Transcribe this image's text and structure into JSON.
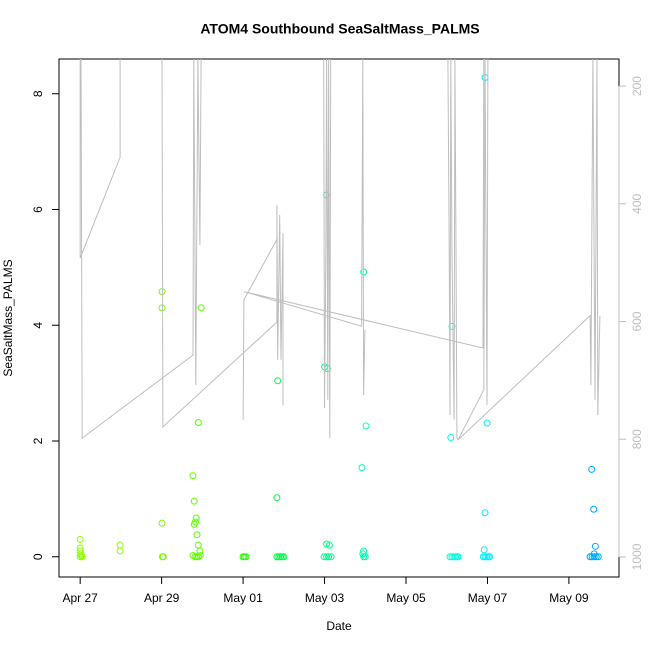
{
  "chart_data": {
    "type": "scatter",
    "title": "ATOM4 Southbound SeaSaltMass_PALMS",
    "x_label": "Date",
    "y_label": "SeaSaltMass_PALMS",
    "xlim": [
      -0.52,
      13.23
    ],
    "xticks": [
      {
        "value": 0,
        "label": "Apr 27"
      },
      {
        "value": 2,
        "label": "Apr 29"
      },
      {
        "value": 4,
        "label": "May 01"
      },
      {
        "value": 6,
        "label": "May 03"
      },
      {
        "value": 8,
        "label": "May 05"
      },
      {
        "value": 10,
        "label": "May 07"
      },
      {
        "value": 12,
        "label": "May 09"
      }
    ],
    "ylim": [
      -0.35,
      8.6
    ],
    "yticks": [
      0,
      2,
      4,
      6,
      8
    ],
    "y2lim": [
      1034,
      154
    ],
    "y2ticks": [
      200,
      400,
      600,
      800,
      1000
    ],
    "series": [
      {
        "color": "#8cff00",
        "x": [
          0,
          0,
          0,
          0.02,
          0.05,
          0,
          0.03,
          0.98,
          0.98
        ],
        "values": [
          0.3,
          0.15,
          0.1,
          0.05,
          0,
          0,
          0.02,
          0.2,
          0.1
        ]
      },
      {
        "color": "#6eff00",
        "x": [
          2.01,
          2.01,
          2.01,
          2.02,
          2.04
        ],
        "values": [
          4.58,
          4.3,
          0.58,
          0,
          0
        ]
      },
      {
        "color": "#5cff00",
        "x": [
          2.77,
          2.8,
          2.85,
          2.83,
          2.8,
          2.9,
          2.97,
          2.87,
          2.9,
          2.94,
          2.77,
          2.82,
          2.86,
          2.9,
          2.95
        ],
        "values": [
          1.4,
          0.96,
          0.67,
          0.6,
          0.56,
          2.32,
          4.3,
          0.38,
          0.2,
          0.1,
          0.02,
          0,
          0,
          0,
          0.02
        ]
      },
      {
        "color": "#26ff00",
        "x": [
          4.0,
          4.03,
          4.07
        ],
        "values": [
          0,
          0,
          0
        ]
      },
      {
        "color": "#00ff44",
        "x": [
          4.85,
          4.83,
          4.83,
          4.88,
          4.92,
          4.96,
          5.0
        ],
        "values": [
          3.04,
          1.02,
          0,
          0,
          0,
          0,
          0
        ]
      },
      {
        "color": "#00ff88",
        "x": [
          6.05,
          6.0,
          6.07,
          6.05,
          6.12,
          5.99,
          6.05,
          6.1,
          6.16
        ],
        "values": [
          6.25,
          3.28,
          3.25,
          0.22,
          0.2,
          0,
          0,
          0,
          0
        ]
      },
      {
        "color": "#00ffaa",
        "x": [
          6.96,
          7.02,
          6.92,
          6.96,
          6.94,
          6.96,
          7.0
        ],
        "values": [
          4.92,
          2.26,
          1.54,
          0.1,
          0.05,
          0,
          0
        ]
      },
      {
        "color": "#00ffdd",
        "x": [
          9.13,
          9.1,
          9.08,
          9.13,
          9.18,
          9.22,
          9.26,
          9.28
        ],
        "values": [
          3.98,
          2.06,
          0,
          0,
          0,
          0,
          0,
          0
        ]
      },
      {
        "color": "#00f0ff",
        "x": [
          9.94,
          9.99,
          9.94,
          9.92,
          9.9,
          9.94,
          9.98,
          10.02,
          10.05
        ],
        "values": [
          8.28,
          2.31,
          0.76,
          0.12,
          0,
          0,
          0,
          0,
          0
        ]
      },
      {
        "color": "#00a8ff",
        "x": [
          12.56,
          12.61,
          12.65,
          12.62,
          12.52,
          12.57,
          12.62,
          12.67,
          12.72
        ],
        "values": [
          1.51,
          0.82,
          0.18,
          0.05,
          0,
          0,
          0,
          0,
          0
        ]
      },
      {
        "type": "line",
        "axis": "y2",
        "color": "#bebebe",
        "x": [
          0,
          0,
          0.98,
          0.98,
          null,
          0.02,
          0.05,
          2.77,
          2.79,
          2.84,
          2.89,
          2.94,
          2.97,
          null,
          2.01,
          2.03,
          4.83,
          4.83,
          4.85,
          4.9,
          4.93,
          4.98,
          4.98,
          null,
          4.0,
          4.02,
          4.85,
          null,
          4.02,
          4.07,
          6.91,
          6.94,
          6.96,
          6.99,
          null,
          5.98,
          6.0,
          6.03,
          6.05,
          6.08,
          6.1,
          6.13,
          6.15,
          null,
          9.03,
          9.06,
          9.08,
          9.1,
          9.13,
          9.18,
          9.2,
          9.23,
          9.25,
          9.28,
          9.91,
          9.94,
          9.99,
          10.01,
          null,
          4.07,
          9.89,
          9.91,
          null,
          9.28,
          12.52,
          12.54,
          12.59,
          12.64,
          12.69,
          12.71,
          12.76
        ],
        "values": [
          154,
          492,
          321,
          154,
          null,
          154,
          798,
          657,
          154,
          708,
          154,
          470,
          154,
          null,
          154,
          779,
          601,
          402,
          665,
          419,
          665,
          450,
          742,
          null,
          767,
          563,
          458,
          null,
          550,
          550,
          608,
          154,
          725,
          614,
          null,
          154,
          747,
          495,
          154,
          733,
          154,
          798,
          154,
          null,
          154,
          475,
          759,
          154,
          487,
          767,
          154,
          509,
          798,
          801,
          716,
          154,
          742,
          154,
          null,
          550,
          645,
          154,
          null,
          801,
          590,
          708,
          154,
          733,
          154,
          759,
          590
        ]
      }
    ]
  }
}
